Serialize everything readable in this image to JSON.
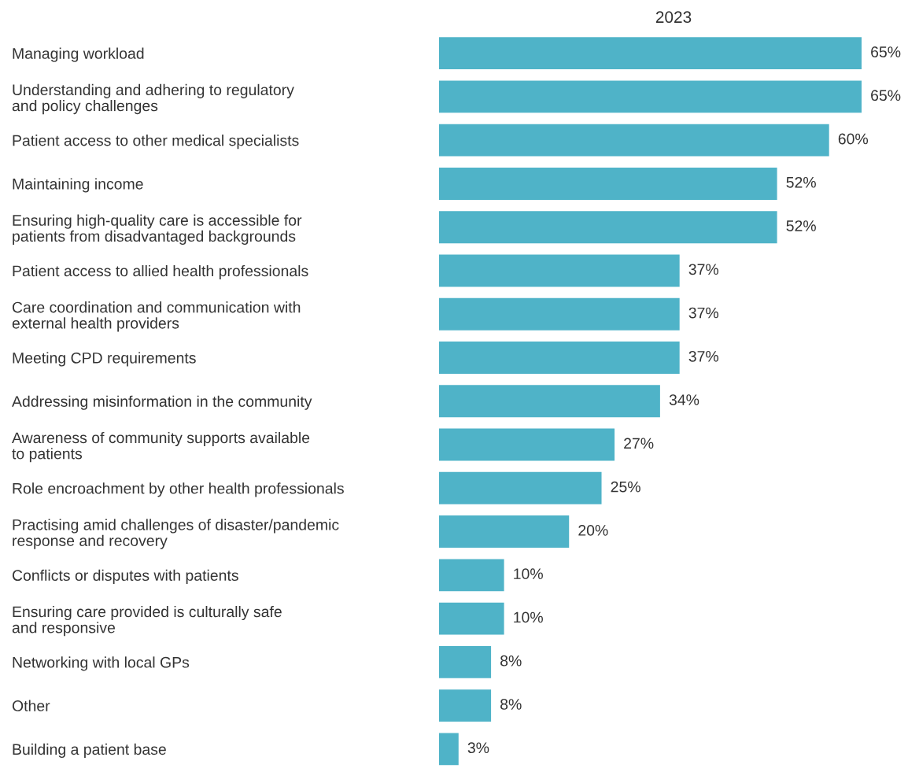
{
  "chart_data": {
    "type": "bar",
    "orientation": "horizontal",
    "title": "2023",
    "categories": [
      "Managing workload",
      "Understanding and adhering to regulatory\nand policy challenges",
      "Patient access to other medical specialists",
      "Maintaining income",
      "Ensuring high-quality care is accessible for\npatients from disadvantaged backgrounds",
      "Patient access to allied health professionals",
      "Care coordination and communication with\nexternal health providers",
      "Meeting CPD requirements",
      "Addressing misinformation in the community",
      "Awareness of community supports available\nto patients",
      "Role encroachment by other health professionals",
      "Practising amid challenges of disaster/pandemic\nresponse and recovery",
      "Conflicts or disputes with patients",
      "Ensuring care provided is culturally safe\nand responsive",
      "Networking with local GPs",
      "Other",
      "Building a patient base"
    ],
    "values": [
      65,
      65,
      60,
      52,
      52,
      37,
      37,
      37,
      34,
      27,
      25,
      20,
      10,
      10,
      8,
      8,
      3
    ],
    "value_labels": [
      "65%",
      "65%",
      "60%",
      "52%",
      "52%",
      "37%",
      "37%",
      "37%",
      "34%",
      "27%",
      "25%",
      "20%",
      "10%",
      "10%",
      "8%",
      "8%",
      "3%"
    ],
    "color": "#4fb3c8",
    "grid": false,
    "legend": false
  }
}
